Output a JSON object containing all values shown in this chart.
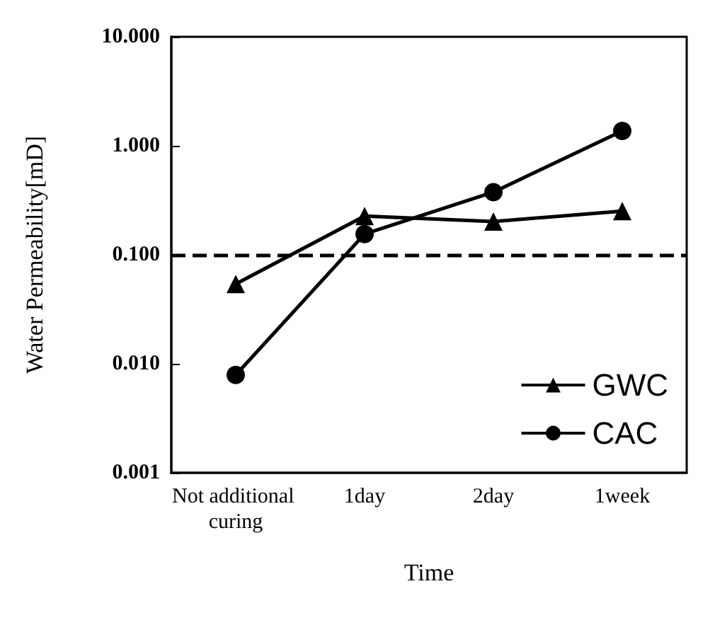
{
  "chart_data": {
    "type": "line",
    "xlabel": "Time",
    "ylabel": "Water Permeability[mD]",
    "categories": [
      "Not additional curing",
      "1day",
      "2day",
      "1week"
    ],
    "series": [
      {
        "name": "GWC",
        "color": "#000000",
        "marker": "triangle",
        "values": [
          0.054,
          0.227,
          0.202,
          0.252
        ]
      },
      {
        "name": "CAC",
        "color": "#000000",
        "marker": "circle",
        "values": [
          0.0079,
          0.155,
          0.376,
          1.37
        ]
      }
    ],
    "log": "y",
    "ylim": [
      0.001,
      10
    ],
    "yticks": [
      {
        "value": 0.001,
        "label": "0.001"
      },
      {
        "value": 0.01,
        "label": "0.010"
      },
      {
        "value": 0.1,
        "label": "0.100"
      },
      {
        "value": 1,
        "label": "1.000"
      },
      {
        "value": 10,
        "label": "10.000"
      }
    ],
    "ref_lines": [
      {
        "axis": "y",
        "value": 0.1,
        "line_style": "dashed",
        "color": "#000000"
      }
    ],
    "legend": "bottom right",
    "grid": false,
    "line_style": "solid"
  }
}
